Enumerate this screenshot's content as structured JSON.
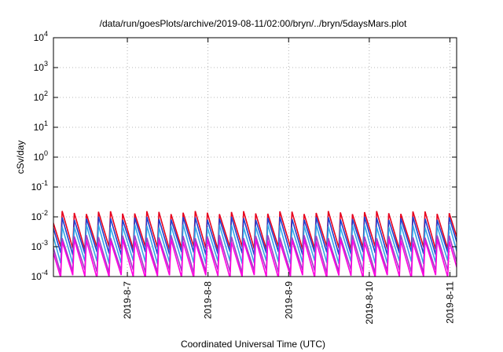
{
  "chart_data": {
    "type": "line",
    "title": "/data/run/goesPlots/archive/2019-08-11/02:00/bryn/../bryn/5daysMars.plot",
    "xlabel": "Coordinated Universal Time (UTC)",
    "ylabel": "cSv/day",
    "y_scale": "log",
    "ylim": [
      0.0001,
      10000
    ],
    "xlim": [
      "2019-08-06T02:00",
      "2019-08-11T02:00"
    ],
    "grid": true,
    "y_ticks": [
      {
        "base": "10",
        "exp": "-4"
      },
      {
        "base": "10",
        "exp": "-3"
      },
      {
        "base": "10",
        "exp": "-2"
      },
      {
        "base": "10",
        "exp": "-1"
      },
      {
        "base": "10",
        "exp": "0"
      },
      {
        "base": "10",
        "exp": "1"
      },
      {
        "base": "10",
        "exp": "2"
      },
      {
        "base": "10",
        "exp": "3"
      },
      {
        "base": "10",
        "exp": "4"
      }
    ],
    "x_ticks": [
      "2019-8-7",
      "2019-8-8",
      "2019-8-9",
      "2019-8-10",
      "2019-8-11"
    ],
    "x_tick_dates": [
      "2019-08-07T00:00",
      "2019-08-08T00:00",
      "2019-08-09T00:00",
      "2019-08-10T00:00",
      "2019-08-11T00:00"
    ],
    "pattern": "sawtooth",
    "cycle_hours": 3.6,
    "series": [
      {
        "color": "#e8001c",
        "peak": 0.014,
        "trough": 0.0009
      },
      {
        "color": "#1f3fd0",
        "peak": 0.009,
        "trough": 0.0006
      },
      {
        "color": "#33a8e8",
        "peak": 0.005,
        "trough": 0.0003
      },
      {
        "color": "#9e3fc8",
        "peak": 0.0022,
        "trough": 0.00015
      },
      {
        "color": "#ff00e0",
        "peak": 0.0016,
        "trough": 0.0001
      }
    ]
  }
}
